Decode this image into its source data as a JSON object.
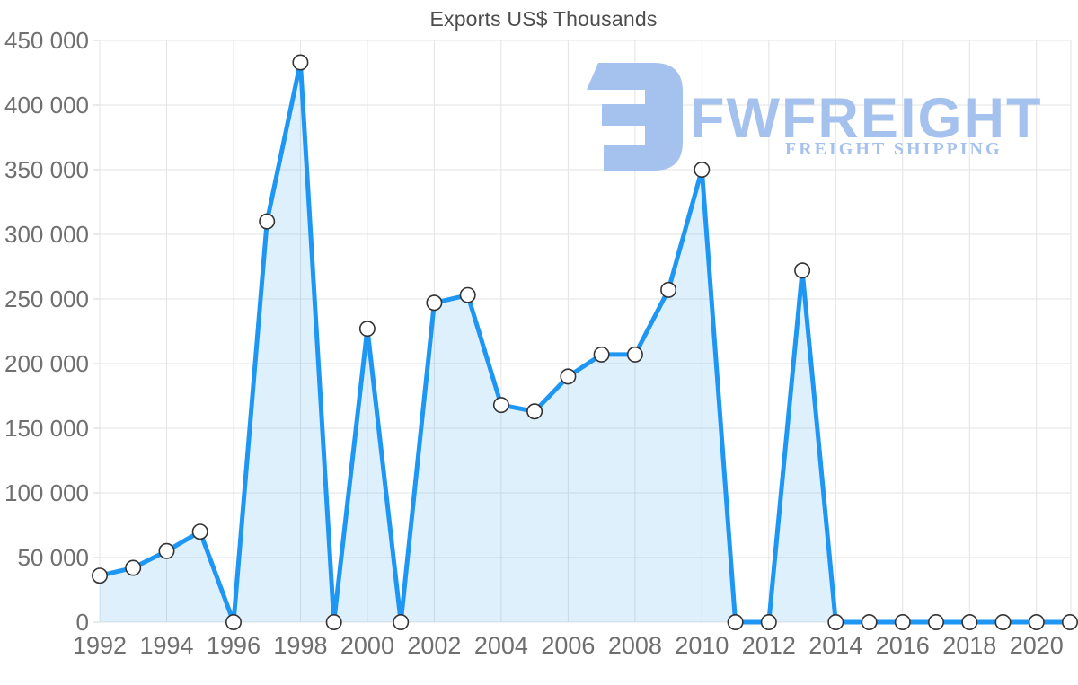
{
  "chart": {
    "title": "Exports US$ Thousands",
    "watermark": {
      "name": "FWFREIGHT",
      "tagline": "FREIGHT SHIPPING",
      "color": "#a5c1ee"
    },
    "colors": {
      "line": "#1e96f3",
      "area_fill": "rgba(30,150,243,0.14)",
      "grid": "#e3e3e3",
      "tick": "#d6d6d6",
      "axis_text": "#6f6f6f",
      "marker_fill": "#ffffff",
      "marker_stroke": "#333333",
      "title_text": "#4d4d4d"
    }
  },
  "chart_data": {
    "type": "area",
    "title": "Exports US$ Thousands",
    "xlabel": "",
    "ylabel": "",
    "x": [
      1992,
      1993,
      1994,
      1995,
      1996,
      1997,
      1998,
      1999,
      2000,
      2001,
      2002,
      2003,
      2004,
      2005,
      2006,
      2007,
      2008,
      2009,
      2010,
      2011,
      2012,
      2013,
      2014,
      2015,
      2016,
      2017,
      2018,
      2019,
      2020,
      2021
    ],
    "values": [
      36000,
      42000,
      55000,
      70000,
      0,
      310000,
      433000,
      0,
      227000,
      0,
      247000,
      253000,
      168000,
      163000,
      190000,
      207000,
      207000,
      257000,
      350000,
      0,
      0,
      272000,
      0,
      0,
      0,
      0,
      0,
      0,
      0,
      0
    ],
    "ylim": [
      0,
      450000
    ],
    "y_tick_step": 50000,
    "y_tick_labels": [
      "0",
      "50 000",
      "100 000",
      "150 000",
      "200 000",
      "250 000",
      "300 000",
      "350 000",
      "400 000",
      "450 000"
    ],
    "x_tick_labels": [
      "1992",
      "1994",
      "1996",
      "1998",
      "2000",
      "2002",
      "2004",
      "2006",
      "2008",
      "2010",
      "2012",
      "2014",
      "2016",
      "2018",
      "2020"
    ],
    "x_tick_years": [
      1992,
      1994,
      1996,
      1998,
      2000,
      2002,
      2004,
      2006,
      2008,
      2010,
      2012,
      2014,
      2016,
      2018,
      2020
    ],
    "grid": true,
    "legend": false,
    "marker": "circle"
  }
}
